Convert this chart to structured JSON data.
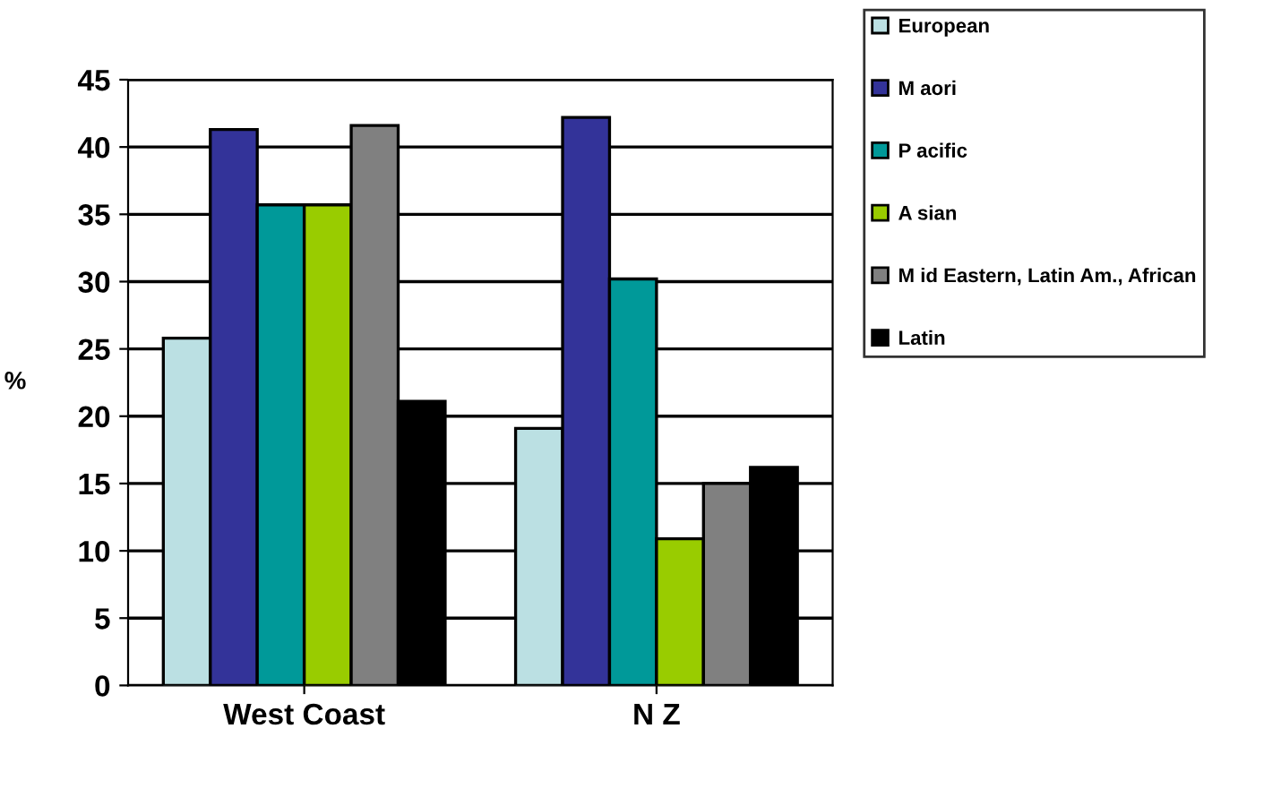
{
  "chart_data": {
    "type": "bar",
    "ylabel": "%",
    "categories": [
      "West Coast",
      "N Z"
    ],
    "series": [
      {
        "name": "European",
        "color": "#bbe0e3",
        "values": [
          25.8,
          19.1
        ]
      },
      {
        "name": "M aori",
        "color": "#333399",
        "values": [
          41.3,
          42.2
        ]
      },
      {
        "name": "P acific",
        "color": "#009999",
        "values": [
          35.7,
          30.2
        ]
      },
      {
        "name": "A sian",
        "color": "#99cc00",
        "values": [
          35.7,
          10.9
        ]
      },
      {
        "name": "M id Eastern, Latin Am., African",
        "color": "#808080",
        "values": [
          41.6,
          15.0
        ]
      },
      {
        "name": "Latin",
        "color": "#000000",
        "values": [
          21.1,
          16.2
        ]
      }
    ],
    "ylim": [
      0,
      45
    ],
    "yticks": [
      0,
      5,
      10,
      15,
      20,
      25,
      30,
      35,
      40,
      45
    ],
    "grid": "y",
    "legend": "right"
  }
}
